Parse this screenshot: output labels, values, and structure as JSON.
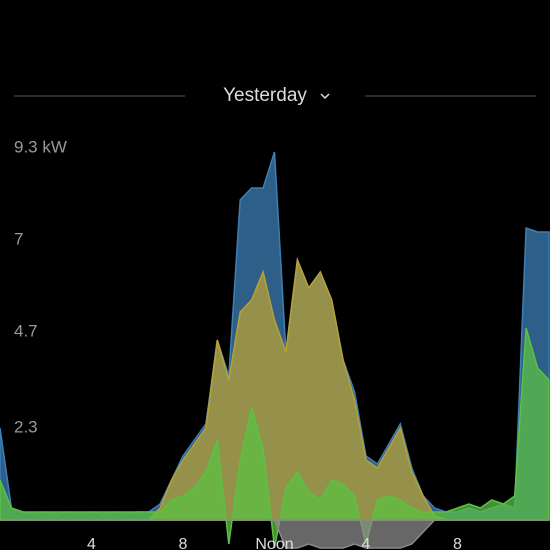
{
  "header": {
    "title": "Yesterday"
  },
  "chart_data": {
    "type": "area",
    "x": [
      0,
      0.5,
      1,
      1.5,
      2,
      2.5,
      3,
      3.5,
      4,
      4.5,
      5,
      5.5,
      6,
      6.5,
      7,
      7.5,
      8,
      8.5,
      9,
      9.5,
      10,
      10.5,
      11,
      11.5,
      12,
      12.5,
      13,
      13.5,
      14,
      14.5,
      15,
      15.5,
      16,
      16.5,
      17,
      17.5,
      18,
      18.5,
      19,
      19.5,
      20,
      20.5,
      21,
      21.5,
      22,
      22.5,
      23,
      23.5,
      24
    ],
    "series": [
      {
        "color": "#3d7fb5",
        "values": [
          2.3,
          0.3,
          0.2,
          0.15,
          0.2,
          0.15,
          0.2,
          0.15,
          0.2,
          0.15,
          0.2,
          0.15,
          0.2,
          0.2,
          0.4,
          1.0,
          1.6,
          2.0,
          2.4,
          4.5,
          3.6,
          8.0,
          8.3,
          8.3,
          9.2,
          4.2,
          6.5,
          5.8,
          6.2,
          5.5,
          4.0,
          3.2,
          1.6,
          1.4,
          1.9,
          2.4,
          1.3,
          0.6,
          0.3,
          0.2,
          0.2,
          0.3,
          0.2,
          0.3,
          0.4,
          0.3,
          7.3,
          7.2,
          7.2
        ]
      },
      {
        "color": "#b8a036",
        "values": [
          0,
          0,
          0,
          0,
          0,
          0,
          0,
          0,
          0,
          0,
          0,
          0,
          0,
          0,
          0.3,
          1.0,
          1.5,
          1.9,
          2.3,
          4.5,
          3.5,
          5.2,
          5.5,
          6.2,
          5.0,
          4.2,
          6.5,
          5.8,
          6.2,
          5.5,
          4.0,
          3.0,
          1.5,
          1.3,
          1.8,
          2.3,
          1.2,
          0.6,
          0.1,
          0,
          0,
          0,
          0,
          0,
          0,
          0,
          0,
          0,
          0
        ]
      },
      {
        "color": "#5cc043",
        "values": [
          1.0,
          0.3,
          0.2,
          0.2,
          0.2,
          0.2,
          0.2,
          0.2,
          0.2,
          0.2,
          0.2,
          0.2,
          0.2,
          0.2,
          0.2,
          0.5,
          0.6,
          0.8,
          1.2,
          2.0,
          -0.6,
          1.5,
          2.8,
          1.8,
          -0.7,
          0.8,
          1.2,
          0.7,
          0.5,
          1.0,
          0.9,
          0.6,
          -0.6,
          0.5,
          0.6,
          0.5,
          0.3,
          0.2,
          0.2,
          0.2,
          0.3,
          0.4,
          0.3,
          0.5,
          0.4,
          0.6,
          4.8,
          3.8,
          3.5
        ]
      },
      {
        "color": "#8a8a8a",
        "values": [
          0,
          0,
          0,
          0,
          0,
          0,
          0,
          0,
          0,
          0,
          0,
          0,
          0,
          0,
          0,
          0,
          0,
          0,
          0,
          0,
          0,
          0,
          0,
          0,
          0,
          -0.7,
          -0.7,
          -0.6,
          -0.7,
          -0.7,
          -0.7,
          -0.6,
          -0.7,
          -0.7,
          -0.7,
          -0.7,
          -0.6,
          -0.3,
          0,
          0,
          0,
          0,
          0,
          0,
          0,
          0,
          0,
          0,
          0
        ]
      }
    ],
    "xlim": [
      0,
      24
    ],
    "xticks": [
      4,
      8,
      {
        "value": 12,
        "label": "Noon"
      },
      {
        "value": 16,
        "label": "4"
      },
      {
        "value": 20,
        "label": "8"
      }
    ],
    "ylim": [
      -0.75,
      9.3
    ],
    "yticks": [
      {
        "value": 9.3,
        "label": "9.3 kW"
      },
      7,
      4.7,
      2.3
    ],
    "grid": false
  }
}
